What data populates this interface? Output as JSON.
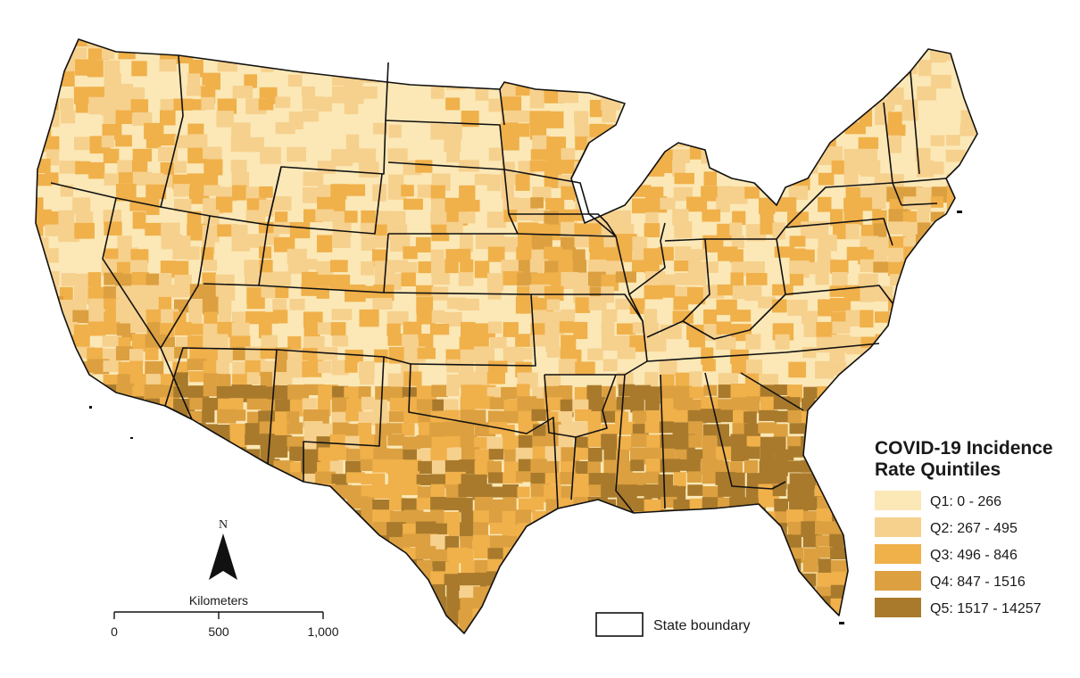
{
  "legend": {
    "title_line1": "COVID-19 Incidence",
    "title_line2": "Rate Quintiles",
    "classes": [
      {
        "label": "Q1: 0 - 266",
        "color": "#fbe8b6"
      },
      {
        "label": "Q2: 267 - 495",
        "color": "#f6d08d"
      },
      {
        "label": "Q3: 496 - 846",
        "color": "#f0b04a"
      },
      {
        "label": "Q4: 847 - 1516",
        "color": "#dca040"
      },
      {
        "label": "Q5: 1517 - 14257",
        "color": "#a97a2c"
      }
    ]
  },
  "boundary_legend": {
    "label": "State boundary"
  },
  "north_arrow": {
    "label": "N"
  },
  "scale_bar": {
    "unit": "Kilometers",
    "ticks": [
      "0",
      "500",
      "1,000"
    ]
  },
  "colors": {
    "boundary": "#111111",
    "background": "#ffffff"
  }
}
